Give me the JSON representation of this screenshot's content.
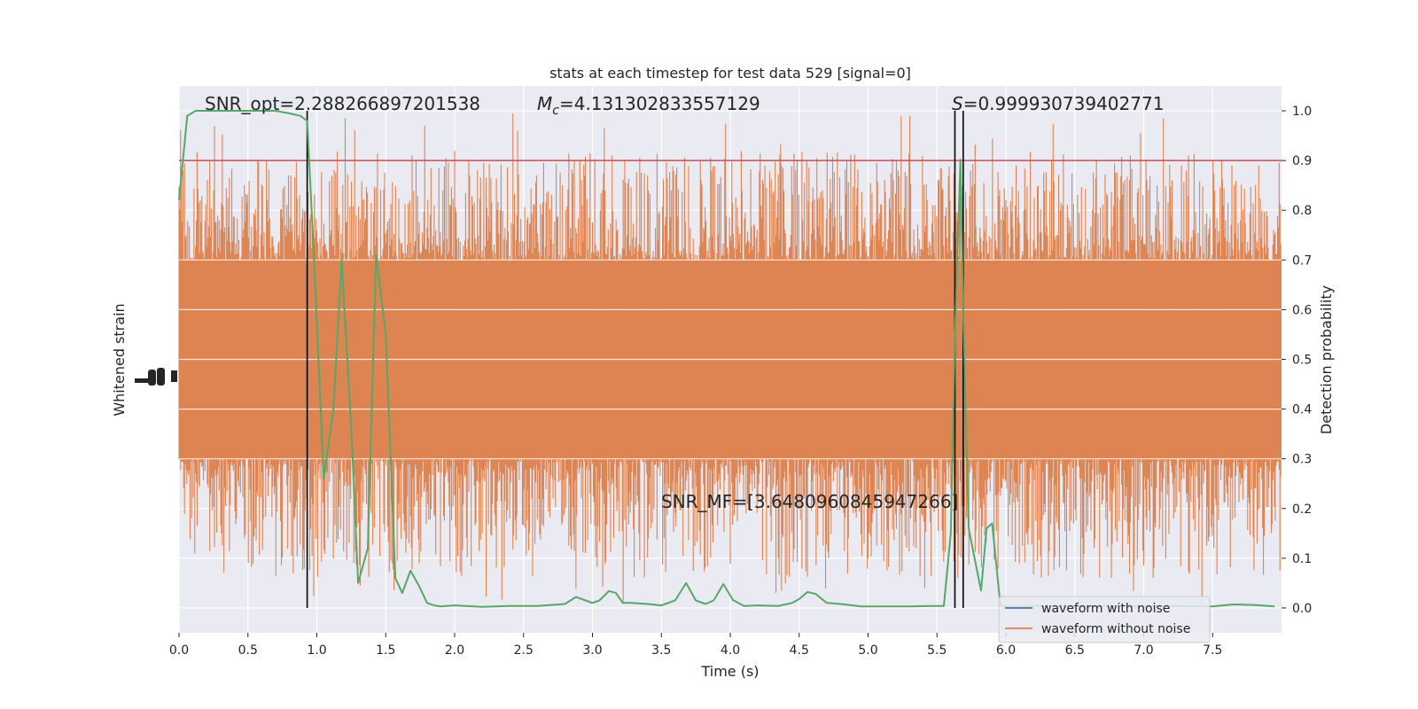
{
  "chart_data": {
    "type": "line",
    "title": "stats at each timestep for test data 529 [signal=0]",
    "xlabel": "Time (s)",
    "ylabel_left": "Whitened strain",
    "ylabel_right": "Detection probability",
    "xlim": [
      0.0,
      8.0
    ],
    "ylim_right": [
      -0.05,
      1.05
    ],
    "x_ticks": [
      0.0,
      0.5,
      1.0,
      1.5,
      2.0,
      2.5,
      3.0,
      3.5,
      4.0,
      4.5,
      5.0,
      5.5,
      6.0,
      6.5,
      7.0,
      7.5
    ],
    "x_tick_labels": [
      "0.0",
      "0.5",
      "1.0",
      "1.5",
      "2.0",
      "2.5",
      "3.0",
      "3.5",
      "4.0",
      "4.5",
      "5.0",
      "5.5",
      "6.0",
      "6.5",
      "7.0",
      "7.5"
    ],
    "y_right_ticks": [
      0.0,
      0.1,
      0.2,
      0.3,
      0.4,
      0.5,
      0.6,
      0.7,
      0.8,
      0.9,
      1.0
    ],
    "y_right_tick_labels": [
      "0.0",
      "0.1",
      "0.2",
      "0.3",
      "0.4",
      "0.5",
      "0.6",
      "0.7",
      "0.8",
      "0.9",
      "1.0"
    ],
    "annotations": {
      "snr_opt": "SNR_opt=2.288266897201538",
      "mc_symbol": "M",
      "mc_sub": "c",
      "mc_value": "=4.131302833557129",
      "s_symbol": "S",
      "s_value": "=0.999930739402771",
      "snr_mf": "SNR_MF=[3.6480960845947266]"
    },
    "threshold": 0.9,
    "vertical_lines": [
      0.93,
      5.63,
      5.69
    ],
    "legend_placement": "lower-right",
    "series": [
      {
        "name": "waveform with noise",
        "color": "#4c72b0"
      },
      {
        "name": "waveform without noise",
        "color": "#dd8452"
      },
      {
        "color": "#55a868",
        "x": [
          0.0,
          0.06,
          0.12,
          0.2,
          0.3,
          0.5,
          0.7,
          0.8,
          0.88,
          0.93,
          0.98,
          1.05,
          1.12,
          1.18,
          1.25,
          1.3,
          1.37,
          1.43,
          1.5,
          1.57,
          1.62,
          1.68,
          1.74,
          1.8,
          1.85,
          1.9,
          2.0,
          2.2,
          2.4,
          2.6,
          2.8,
          2.88,
          2.95,
          3.0,
          3.05,
          3.12,
          3.17,
          3.22,
          3.28,
          3.4,
          3.5,
          3.6,
          3.68,
          3.75,
          3.82,
          3.88,
          3.95,
          4.02,
          4.1,
          4.2,
          4.35,
          4.45,
          4.5,
          4.56,
          4.62,
          4.7,
          4.8,
          4.95,
          5.1,
          5.3,
          5.45,
          5.55,
          5.6,
          5.63,
          5.67,
          5.69,
          5.73,
          5.78,
          5.82,
          5.86,
          5.9,
          5.96,
          6.02,
          6.1,
          6.2,
          6.4,
          6.7,
          7.0,
          7.2,
          7.5,
          7.65,
          7.8,
          7.95
        ],
        "values": [
          0.82,
          0.99,
          1.0,
          1.0,
          1.0,
          1.0,
          1.0,
          0.995,
          0.99,
          0.98,
          0.7,
          0.26,
          0.4,
          0.7,
          0.36,
          0.05,
          0.12,
          0.71,
          0.55,
          0.06,
          0.03,
          0.075,
          0.045,
          0.01,
          0.005,
          0.003,
          0.005,
          0.002,
          0.004,
          0.004,
          0.008,
          0.022,
          0.015,
          0.01,
          0.015,
          0.034,
          0.03,
          0.01,
          0.01,
          0.008,
          0.005,
          0.015,
          0.05,
          0.015,
          0.008,
          0.015,
          0.048,
          0.016,
          0.004,
          0.005,
          0.004,
          0.01,
          0.018,
          0.032,
          0.028,
          0.01,
          0.008,
          0.003,
          0.003,
          0.003,
          0.004,
          0.004,
          0.15,
          0.55,
          0.9,
          0.6,
          0.16,
          0.09,
          0.035,
          0.16,
          0.17,
          0.005,
          0.003,
          0.002,
          0.004,
          0.003,
          0.004,
          0.003,
          0.004,
          0.003,
          0.007,
          0.006,
          0.003
        ]
      }
    ]
  }
}
